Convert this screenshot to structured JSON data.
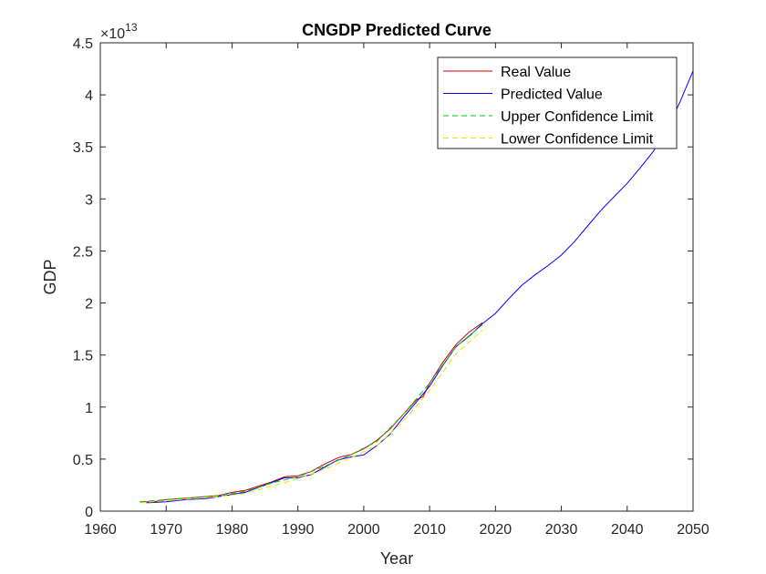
{
  "chart_data": {
    "type": "line",
    "title": "CNGDP Predicted Curve",
    "xlabel": "Year",
    "ylabel": "GDP",
    "y_exponent_base": "×10",
    "y_exponent_power": "13",
    "xlim": [
      1960,
      2050
    ],
    "ylim": [
      0,
      4.5
    ],
    "grid": false,
    "legend_position": "top-right",
    "x_ticks": [
      "1960",
      "1970",
      "1980",
      "1990",
      "2000",
      "2010",
      "2020",
      "2030",
      "2040",
      "2050"
    ],
    "y_ticks": [
      "0",
      "0.5",
      "1",
      "1.5",
      "2",
      "2.5",
      "3",
      "3.5",
      "4",
      "4.5"
    ],
    "series": [
      {
        "name": "Real Value",
        "color": "#cc0000",
        "style": "solid",
        "x": [
          1966,
          1968,
          1970,
          1972,
          1974,
          1976,
          1978,
          1980,
          1982,
          1984,
          1986,
          1988,
          1990,
          1992,
          1994,
          1996,
          1997,
          1998,
          2000,
          2002,
          2004,
          2006,
          2008,
          2009,
          2010,
          2012,
          2014,
          2016,
          2018
        ],
        "y": [
          0.09,
          0.09,
          0.11,
          0.12,
          0.13,
          0.14,
          0.15,
          0.18,
          0.2,
          0.24,
          0.28,
          0.33,
          0.34,
          0.38,
          0.45,
          0.51,
          0.53,
          0.54,
          0.6,
          0.68,
          0.79,
          0.93,
          1.07,
          1.1,
          1.23,
          1.43,
          1.6,
          1.72,
          1.81
        ]
      },
      {
        "name": "Predicted Value",
        "color": "#0000ff",
        "style": "solid",
        "x": [
          1967,
          1970,
          1973,
          1976,
          1979,
          1982,
          1985,
          1988,
          1990,
          1992,
          1994,
          1996,
          1998,
          2000,
          2002,
          2004,
          2006,
          2008,
          2010,
          2012,
          2014,
          2016,
          2018,
          2020,
          2022,
          2024,
          2026,
          2028,
          2030,
          2032,
          2034,
          2036,
          2038,
          2040,
          2042,
          2044,
          2046,
          2048,
          2050
        ],
        "y": [
          0.08,
          0.09,
          0.11,
          0.12,
          0.15,
          0.18,
          0.25,
          0.32,
          0.32,
          0.35,
          0.42,
          0.49,
          0.52,
          0.54,
          0.63,
          0.74,
          0.9,
          1.05,
          1.2,
          1.4,
          1.58,
          1.68,
          1.8,
          1.9,
          2.04,
          2.17,
          2.27,
          2.36,
          2.46,
          2.59,
          2.74,
          2.89,
          3.02,
          3.15,
          3.3,
          3.46,
          3.66,
          3.93,
          4.23
        ]
      },
      {
        "name": "Upper Confidence Limit",
        "color": "#00cc00",
        "style": "dashed",
        "x": [
          1966,
          1970,
          1974,
          1978,
          1982,
          1986,
          1990,
          1994,
          1998,
          2002,
          2006,
          2010,
          2014,
          2018
        ],
        "y": [
          0.09,
          0.11,
          0.13,
          0.15,
          0.19,
          0.27,
          0.33,
          0.43,
          0.54,
          0.67,
          0.93,
          1.23,
          1.58,
          1.79
        ]
      },
      {
        "name": "Lower Confidence Limit",
        "color": "#e6e600",
        "style": "dashed",
        "x": [
          1966,
          1970,
          1974,
          1978,
          1982,
          1986,
          1990,
          1994,
          1998,
          2002,
          2006,
          2010,
          2014,
          2018
        ],
        "y": [
          0.08,
          0.1,
          0.12,
          0.14,
          0.17,
          0.24,
          0.31,
          0.4,
          0.51,
          0.63,
          0.86,
          1.16,
          1.51,
          1.74
        ]
      }
    ]
  }
}
